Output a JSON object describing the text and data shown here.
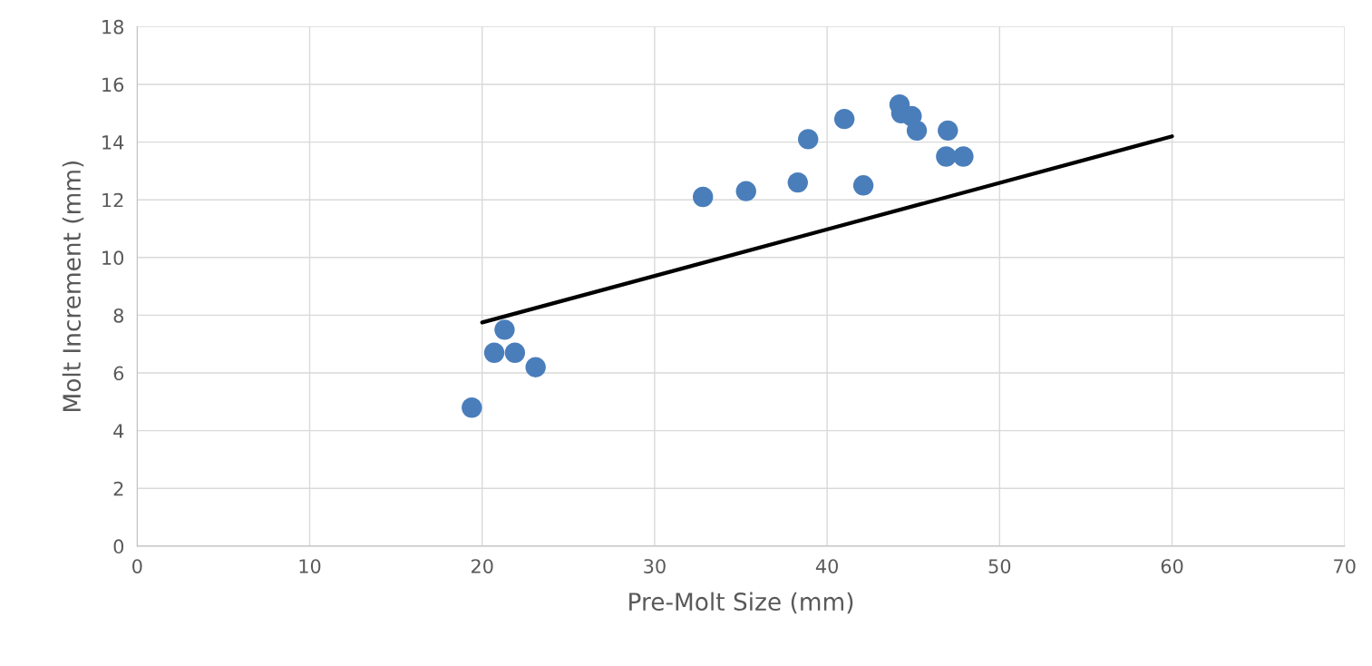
{
  "chart_data": {
    "type": "scatter",
    "xlabel": "Pre-Molt Size (mm)",
    "ylabel": "Molt Increment (mm)",
    "xlim": [
      0,
      70
    ],
    "xticks": [
      0,
      10,
      20,
      30,
      40,
      50,
      60,
      70
    ],
    "ylim": [
      0,
      18
    ],
    "yticks": [
      0,
      2,
      4,
      6,
      8,
      10,
      12,
      14,
      16,
      18
    ],
    "grid": true,
    "series": [
      {
        "marker": "circle",
        "color": "#4a7ebb",
        "x": [
          19.4,
          20.7,
          21.3,
          21.9,
          23.1,
          32.8,
          35.3,
          38.3,
          38.9,
          41.0,
          42.1,
          44.2,
          44.3,
          44.9,
          45.2,
          47.0,
          46.9,
          47.9
        ],
        "values": [
          4.8,
          6.7,
          7.5,
          6.7,
          6.2,
          12.1,
          12.3,
          12.6,
          14.1,
          14.8,
          12.5,
          15.3,
          15.0,
          14.9,
          14.4,
          14.4,
          13.5,
          13.5
        ]
      },
      {
        "type": "line",
        "color": "#000000",
        "x": [
          20,
          60
        ],
        "values": [
          7.75,
          14.2
        ]
      }
    ]
  }
}
